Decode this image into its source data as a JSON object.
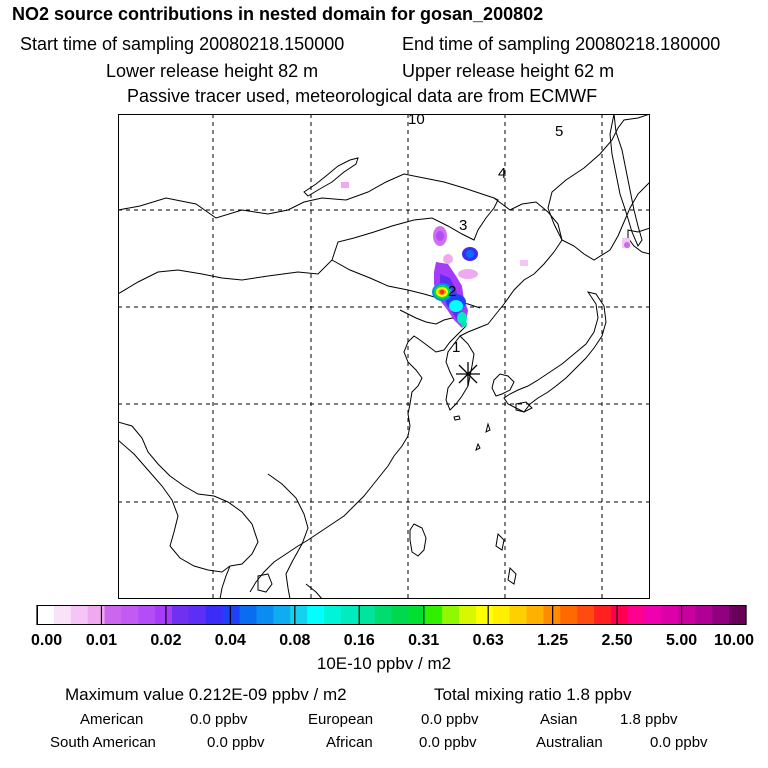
{
  "header": {
    "title": "NO2 source contributions in nested domain for gosan_200802",
    "start_label": "Start time of sampling 20080218.150000",
    "end_label": "End time of sampling 20080218.180000",
    "lower_label": "Lower release height   82 m",
    "upper_label": "Upper release height   62 m",
    "tracer_label": "Passive tracer used, meteorological data are from ECMWF"
  },
  "map": {
    "trajectory_labels": [
      "1",
      "2",
      "3",
      "4",
      "5",
      "10"
    ],
    "receptor_marker": "receptor-star-icon"
  },
  "colorbar": {
    "tick_labels": [
      "0.00",
      "0.01",
      "0.02",
      "0.04",
      "0.08",
      "0.16",
      "0.31",
      "0.63",
      "1.25",
      "2.50",
      "5.00",
      "10.00"
    ],
    "colors": [
      "#ffffff",
      "#fbe2fb",
      "#f5c6f5",
      "#efaaef",
      "#cc66ee",
      "#c35af4",
      "#b44cf8",
      "#a53cfa",
      "#7030f0",
      "#5c2ef6",
      "#3c2cf8",
      "#1e40f8",
      "#0a6cf0",
      "#0a8cf0",
      "#10acf0",
      "#16d0f0",
      "#00ffff",
      "#00f4d8",
      "#00ecc0",
      "#00e4a0",
      "#00dc70",
      "#00d850",
      "#00e030",
      "#30f000",
      "#90f800",
      "#d8f800",
      "#ffff00",
      "#fff000",
      "#ffd000",
      "#ffb000",
      "#ff8c00",
      "#ff6a00",
      "#ff4a10",
      "#ff2020",
      "#ff0050",
      "#ff0090",
      "#f000b0",
      "#dd00a8",
      "#c8009e",
      "#b00094",
      "#900080",
      "#6a005a"
    ],
    "units": "10E-10 ppbv / m2"
  },
  "chart_data": {
    "type": "heatmap",
    "title": "NO2 source contributions in nested domain for gosan_200802",
    "color_scale_ticks": [
      0.0,
      0.01,
      0.02,
      0.04,
      0.08,
      0.16,
      0.31,
      0.63,
      1.25,
      2.5,
      5.0,
      10.0
    ],
    "units": "10E-10 ppbv / m2",
    "max_value": "0.212E-09 ppbv / m2",
    "total_mixing_ratio_ppbv": 1.8,
    "regional_contributions_ppbv": {
      "American": 0.0,
      "European": 0.0,
      "Asian": 1.8,
      "South American": 0.0,
      "African": 0.0,
      "Australian": 0.0
    },
    "trajectory_day_labels": [
      1,
      2,
      3,
      4,
      5,
      10
    ]
  },
  "summary": {
    "max_label": "Maximum value  0.212E-09 ppbv / m2",
    "total_label": "Total mixing ratio        1.8 ppbv",
    "regions": [
      {
        "name": "American",
        "value": "0.0 ppbv"
      },
      {
        "name": "European",
        "value": "0.0 ppbv"
      },
      {
        "name": "Asian",
        "value": "1.8 ppbv"
      },
      {
        "name": "South American",
        "value": "0.0 ppbv"
      },
      {
        "name": "African",
        "value": "0.0 ppbv"
      },
      {
        "name": "Australian",
        "value": "0.0 ppbv"
      }
    ]
  }
}
